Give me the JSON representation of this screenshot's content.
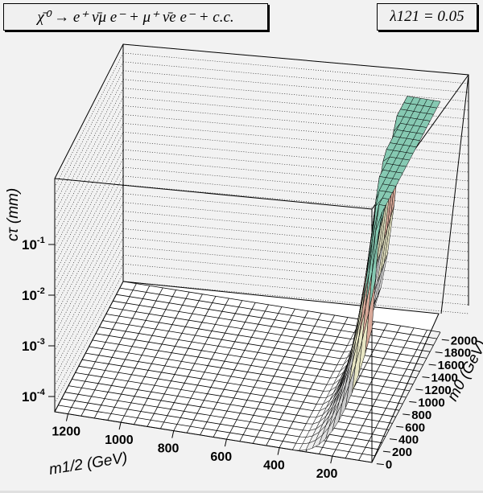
{
  "chart_data": {
    "type": "surface3d",
    "title": "χ̄⁰ → e⁺ ν̄μ e⁻ + μ⁺ ν̄e e⁻ + c.c.",
    "annotation": "λ121 = 0.05",
    "xlabel": "m1/2 (GeV)",
    "ylabel": "m0 (GeV)",
    "zlabel": "cτ (mm)",
    "x_ticks": [
      "1200",
      "1000",
      "800",
      "600",
      "400",
      "200"
    ],
    "y_ticks": [
      "0",
      "200",
      "400",
      "600",
      "800",
      "1000",
      "1200",
      "1400",
      "1600",
      "1800",
      "2000"
    ],
    "z_ticks": [
      "10-4",
      "10-3",
      "10-2",
      "10-1"
    ],
    "xlim": [
      50,
      1250
    ],
    "ylim": [
      0,
      2100
    ],
    "zlim": [
      5e-05,
      2
    ],
    "zscale": "log",
    "grid": true,
    "note": "Surface rises steeply toward low m1/2 and high m0; flat near floor elsewhere"
  }
}
